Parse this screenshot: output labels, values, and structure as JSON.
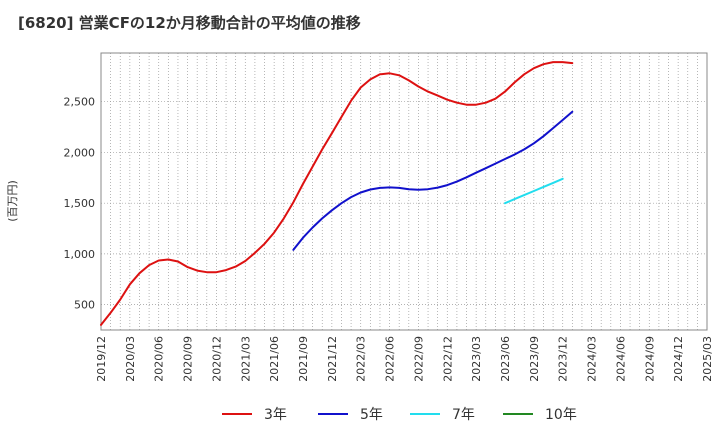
{
  "chart_data": {
    "type": "line",
    "title": "[6820]  営業CFの12か月移動合計の平均値の推移",
    "ylabel": "(百万円)",
    "xlabel": "",
    "x_ticks": [
      "2019/12",
      "2020/03",
      "2020/06",
      "2020/09",
      "2020/12",
      "2021/03",
      "2021/06",
      "2021/09",
      "2021/12",
      "2022/03",
      "2022/06",
      "2022/09",
      "2022/12",
      "2023/03",
      "2023/06",
      "2023/09",
      "2023/12",
      "2024/03",
      "2024/06",
      "2024/09",
      "2024/12",
      "2025/03"
    ],
    "y_ticks": [
      500,
      1000,
      1500,
      2000,
      2500
    ],
    "y_tick_labels": [
      "500",
      "1,000",
      "1,500",
      "2,000",
      "2,500"
    ],
    "ylim": [
      250,
      2980
    ],
    "grid": true,
    "legend_position": "bottom",
    "series": [
      {
        "name": "3年",
        "color": "#dd1111",
        "points": [
          [
            "2019/12",
            300
          ],
          [
            "2020/01",
            420
          ],
          [
            "2020/02",
            550
          ],
          [
            "2020/03",
            700
          ],
          [
            "2020/04",
            810
          ],
          [
            "2020/05",
            890
          ],
          [
            "2020/06",
            935
          ],
          [
            "2020/07",
            945
          ],
          [
            "2020/08",
            925
          ],
          [
            "2020/09",
            870
          ],
          [
            "2020/10",
            835
          ],
          [
            "2020/11",
            820
          ],
          [
            "2020/12",
            820
          ],
          [
            "2021/01",
            840
          ],
          [
            "2021/02",
            875
          ],
          [
            "2021/03",
            930
          ],
          [
            "2021/04",
            1010
          ],
          [
            "2021/05",
            1100
          ],
          [
            "2021/06",
            1210
          ],
          [
            "2021/07",
            1350
          ],
          [
            "2021/08",
            1510
          ],
          [
            "2021/09",
            1690
          ],
          [
            "2021/10",
            1860
          ],
          [
            "2021/11",
            2030
          ],
          [
            "2021/12",
            2190
          ],
          [
            "2022/01",
            2350
          ],
          [
            "2022/02",
            2510
          ],
          [
            "2022/03",
            2640
          ],
          [
            "2022/04",
            2720
          ],
          [
            "2022/05",
            2770
          ],
          [
            "2022/06",
            2780
          ],
          [
            "2022/07",
            2760
          ],
          [
            "2022/08",
            2710
          ],
          [
            "2022/09",
            2650
          ],
          [
            "2022/10",
            2600
          ],
          [
            "2022/11",
            2560
          ],
          [
            "2022/12",
            2520
          ],
          [
            "2023/01",
            2490
          ],
          [
            "2023/02",
            2470
          ],
          [
            "2023/03",
            2470
          ],
          [
            "2023/04",
            2490
          ],
          [
            "2023/05",
            2530
          ],
          [
            "2023/06",
            2600
          ],
          [
            "2023/07",
            2690
          ],
          [
            "2023/08",
            2770
          ],
          [
            "2023/09",
            2830
          ],
          [
            "2023/10",
            2870
          ],
          [
            "2023/11",
            2890
          ],
          [
            "2023/12",
            2890
          ],
          [
            "2024/01",
            2880
          ]
        ]
      },
      {
        "name": "5年",
        "color": "#1111cc",
        "points": [
          [
            "2021/08",
            1040
          ],
          [
            "2021/09",
            1160
          ],
          [
            "2021/10",
            1260
          ],
          [
            "2021/11",
            1350
          ],
          [
            "2021/12",
            1430
          ],
          [
            "2022/01",
            1500
          ],
          [
            "2022/02",
            1560
          ],
          [
            "2022/03",
            1605
          ],
          [
            "2022/04",
            1635
          ],
          [
            "2022/05",
            1650
          ],
          [
            "2022/06",
            1655
          ],
          [
            "2022/07",
            1650
          ],
          [
            "2022/08",
            1638
          ],
          [
            "2022/09",
            1633
          ],
          [
            "2022/10",
            1638
          ],
          [
            "2022/11",
            1653
          ],
          [
            "2022/12",
            1678
          ],
          [
            "2023/01",
            1713
          ],
          [
            "2023/02",
            1755
          ],
          [
            "2023/03",
            1800
          ],
          [
            "2023/04",
            1845
          ],
          [
            "2023/05",
            1890
          ],
          [
            "2023/06",
            1935
          ],
          [
            "2023/07",
            1980
          ],
          [
            "2023/08",
            2030
          ],
          [
            "2023/09",
            2090
          ],
          [
            "2023/10",
            2160
          ],
          [
            "2023/11",
            2240
          ],
          [
            "2023/12",
            2320
          ],
          [
            "2024/01",
            2400
          ]
        ]
      },
      {
        "name": "7年",
        "color": "#22ddee",
        "points": [
          [
            "2023/06",
            1500
          ],
          [
            "2023/07",
            1540
          ],
          [
            "2023/08",
            1580
          ],
          [
            "2023/09",
            1620
          ],
          [
            "2023/10",
            1660
          ],
          [
            "2023/11",
            1700
          ],
          [
            "2023/12",
            1740
          ]
        ]
      },
      {
        "name": "10年",
        "color": "#228822",
        "points": []
      }
    ]
  }
}
